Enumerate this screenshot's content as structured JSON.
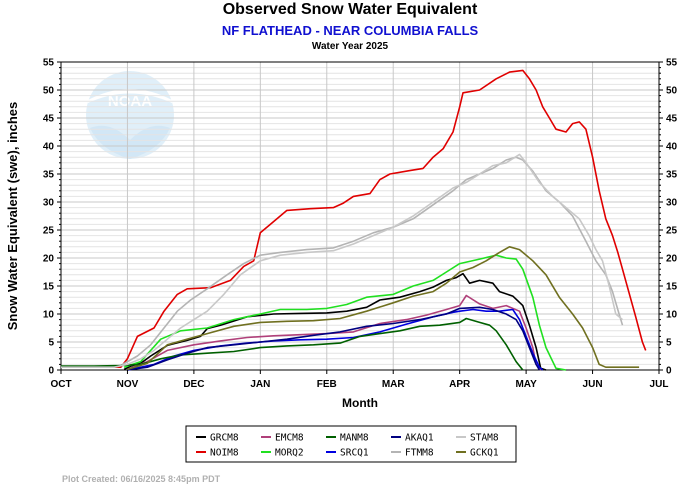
{
  "title": "Observed Snow Water Equivalent",
  "subtitle": "NF FLATHEAD - NEAR COLUMBIA FALLS",
  "water_year": "Water Year 2025",
  "credit": "Plot Created: 06/16/2025 8:45pm PDT",
  "logo_text": "NOAA",
  "chart_data": {
    "type": "line",
    "xlabel": "Month",
    "ylabel": "Snow Water Equivalent (swe),  inches",
    "ylim": [
      0,
      55
    ],
    "yticks": [
      0,
      5,
      10,
      15,
      20,
      25,
      30,
      35,
      40,
      45,
      50,
      55
    ],
    "xlim": [
      0,
      9
    ],
    "xticks": [
      "OCT",
      "NOV",
      "DEC",
      "JAN",
      "FEB",
      "MAR",
      "APR",
      "MAY",
      "JUN",
      "JUL"
    ],
    "grid": true,
    "legend_position": "bottom",
    "series": [
      {
        "name": "GRCM8",
        "color": "#000000",
        "points": [
          [
            0.95,
            0.1
          ],
          [
            1.05,
            0.7
          ],
          [
            1.2,
            1.2
          ],
          [
            1.35,
            2.5
          ],
          [
            1.6,
            4.4
          ],
          [
            1.9,
            5.3
          ],
          [
            2.1,
            6.0
          ],
          [
            2.2,
            7.4
          ],
          [
            2.4,
            8.0
          ],
          [
            2.8,
            9.5
          ],
          [
            3.2,
            10.0
          ],
          [
            3.6,
            10.1
          ],
          [
            4.0,
            10.2
          ],
          [
            4.3,
            10.5
          ],
          [
            4.6,
            11.2
          ],
          [
            4.8,
            12.5
          ],
          [
            5.1,
            13.0
          ],
          [
            5.4,
            14.0
          ],
          [
            5.6,
            14.8
          ],
          [
            5.8,
            16.0
          ],
          [
            5.95,
            16.5
          ],
          [
            6.05,
            17.2
          ],
          [
            6.15,
            15.5
          ],
          [
            6.3,
            16.0
          ],
          [
            6.5,
            15.5
          ],
          [
            6.6,
            14.0
          ],
          [
            6.8,
            13.2
          ],
          [
            6.95,
            11.5
          ],
          [
            7.05,
            8.0
          ],
          [
            7.15,
            4.0
          ],
          [
            7.22,
            0.3
          ],
          [
            7.3,
            0.0
          ]
        ]
      },
      {
        "name": "NOIM8",
        "color": "#e00000",
        "points": [
          [
            0.0,
            0.5
          ],
          [
            0.9,
            0.5
          ],
          [
            1.0,
            2.0
          ],
          [
            1.15,
            6.0
          ],
          [
            1.4,
            7.5
          ],
          [
            1.55,
            10.5
          ],
          [
            1.75,
            13.5
          ],
          [
            1.9,
            14.5
          ],
          [
            2.25,
            14.7
          ],
          [
            2.55,
            16.0
          ],
          [
            2.75,
            18.5
          ],
          [
            2.9,
            19.5
          ],
          [
            3.0,
            24.5
          ],
          [
            3.15,
            26.0
          ],
          [
            3.4,
            28.5
          ],
          [
            3.75,
            28.8
          ],
          [
            4.1,
            29.0
          ],
          [
            4.25,
            29.8
          ],
          [
            4.4,
            31.0
          ],
          [
            4.65,
            31.5
          ],
          [
            4.8,
            34.0
          ],
          [
            4.95,
            35.0
          ],
          [
            5.25,
            35.6
          ],
          [
            5.45,
            36.0
          ],
          [
            5.6,
            38.0
          ],
          [
            5.75,
            39.5
          ],
          [
            5.9,
            42.5
          ],
          [
            6.0,
            47.0
          ],
          [
            6.05,
            49.5
          ],
          [
            6.3,
            50.0
          ],
          [
            6.55,
            52.0
          ],
          [
            6.75,
            53.2
          ],
          [
            6.95,
            53.5
          ],
          [
            7.05,
            52.0
          ],
          [
            7.15,
            50.0
          ],
          [
            7.25,
            47.0
          ],
          [
            7.35,
            45.0
          ],
          [
            7.45,
            43.0
          ],
          [
            7.6,
            42.5
          ],
          [
            7.7,
            44.0
          ],
          [
            7.8,
            44.3
          ],
          [
            7.9,
            43.0
          ],
          [
            8.0,
            38.0
          ],
          [
            8.1,
            32.0
          ],
          [
            8.2,
            27.0
          ],
          [
            8.3,
            24.0
          ],
          [
            8.38,
            21.0
          ],
          [
            8.45,
            18.0
          ],
          [
            8.65,
            9.5
          ],
          [
            8.75,
            5.0
          ],
          [
            8.8,
            3.5
          ]
        ]
      },
      {
        "name": "EMCM8",
        "color": "#b0407a",
        "points": [
          [
            1.0,
            0.1
          ],
          [
            1.3,
            1.5
          ],
          [
            1.6,
            3.5
          ],
          [
            2.0,
            4.5
          ],
          [
            2.4,
            5.2
          ],
          [
            2.8,
            5.8
          ],
          [
            3.2,
            6.1
          ],
          [
            3.6,
            6.3
          ],
          [
            4.0,
            6.5
          ],
          [
            4.4,
            6.8
          ],
          [
            4.8,
            8.3
          ],
          [
            5.2,
            9.0
          ],
          [
            5.5,
            9.8
          ],
          [
            5.8,
            10.8
          ],
          [
            6.0,
            11.5
          ],
          [
            6.1,
            13.3
          ],
          [
            6.3,
            11.8
          ],
          [
            6.5,
            11.0
          ],
          [
            6.7,
            11.5
          ],
          [
            6.9,
            10.5
          ],
          [
            7.0,
            7.5
          ],
          [
            7.1,
            4.0
          ],
          [
            7.15,
            1.0
          ],
          [
            7.22,
            0.0
          ]
        ]
      },
      {
        "name": "MORQ2",
        "color": "#20e020",
        "points": [
          [
            0.95,
            0.5
          ],
          [
            1.2,
            1.5
          ],
          [
            1.5,
            5.5
          ],
          [
            1.8,
            7.0
          ],
          [
            2.2,
            7.5
          ],
          [
            2.6,
            9.0
          ],
          [
            3.0,
            10.0
          ],
          [
            3.3,
            10.8
          ],
          [
            3.7,
            10.8
          ],
          [
            4.0,
            11.0
          ],
          [
            4.3,
            11.7
          ],
          [
            4.6,
            13.0
          ],
          [
            5.0,
            13.5
          ],
          [
            5.3,
            15.0
          ],
          [
            5.6,
            16.0
          ],
          [
            5.8,
            17.5
          ],
          [
            6.0,
            19.0
          ],
          [
            6.3,
            19.8
          ],
          [
            6.55,
            20.5
          ],
          [
            6.7,
            20.0
          ],
          [
            6.85,
            19.8
          ],
          [
            6.95,
            18.0
          ],
          [
            7.1,
            13.0
          ],
          [
            7.2,
            8.0
          ],
          [
            7.3,
            4.0
          ],
          [
            7.45,
            0.3
          ],
          [
            7.6,
            0.0
          ]
        ]
      },
      {
        "name": "SRCQ1",
        "color": "#0000e0",
        "points": [
          [
            1.0,
            0.0
          ],
          [
            1.4,
            1.0
          ],
          [
            1.7,
            2.5
          ],
          [
            2.0,
            3.5
          ],
          [
            2.4,
            4.3
          ],
          [
            2.8,
            4.8
          ],
          [
            3.2,
            5.2
          ],
          [
            3.6,
            5.4
          ],
          [
            4.0,
            5.5
          ],
          [
            4.4,
            5.8
          ],
          [
            4.8,
            6.8
          ],
          [
            5.2,
            8.2
          ],
          [
            5.6,
            9.5
          ],
          [
            5.9,
            10.3
          ],
          [
            6.0,
            10.5
          ],
          [
            6.2,
            10.8
          ],
          [
            6.4,
            10.5
          ],
          [
            6.6,
            10.5
          ],
          [
            6.8,
            10.8
          ],
          [
            6.9,
            9.0
          ],
          [
            7.0,
            6.0
          ],
          [
            7.1,
            3.0
          ],
          [
            7.2,
            0.5
          ],
          [
            7.25,
            0.0
          ]
        ]
      },
      {
        "name": "FTMM8",
        "color": "#b4b4b4",
        "points": [
          [
            0.0,
            0.6
          ],
          [
            0.7,
            0.6
          ],
          [
            0.9,
            0.8
          ],
          [
            1.15,
            2.5
          ],
          [
            1.35,
            4.5
          ],
          [
            1.55,
            7.5
          ],
          [
            1.75,
            10.5
          ],
          [
            1.95,
            12.5
          ],
          [
            2.2,
            14.5
          ],
          [
            2.5,
            17.0
          ],
          [
            2.75,
            19.0
          ],
          [
            3.0,
            20.5
          ],
          [
            3.3,
            21.0
          ],
          [
            3.7,
            21.5
          ],
          [
            4.1,
            21.8
          ],
          [
            4.4,
            23.0
          ],
          [
            4.7,
            24.5
          ],
          [
            5.0,
            25.5
          ],
          [
            5.3,
            27.0
          ],
          [
            5.6,
            29.5
          ],
          [
            5.9,
            32.0
          ],
          [
            6.1,
            34.0
          ],
          [
            6.3,
            35.0
          ],
          [
            6.5,
            36.0
          ],
          [
            6.7,
            37.5
          ],
          [
            6.85,
            38.0
          ],
          [
            6.95,
            37.5
          ],
          [
            7.1,
            35.5
          ],
          [
            7.3,
            32.0
          ],
          [
            7.5,
            30.0
          ],
          [
            7.7,
            27.5
          ],
          [
            7.9,
            23.0
          ],
          [
            8.05,
            19.5
          ],
          [
            8.2,
            17.0
          ],
          [
            8.3,
            14.0
          ],
          [
            8.4,
            10.0
          ],
          [
            8.45,
            8.0
          ]
        ]
      },
      {
        "name": "MANM8",
        "color": "#006000",
        "points": [
          [
            0.0,
            0.7
          ],
          [
            0.5,
            0.7
          ],
          [
            0.9,
            0.8
          ],
          [
            1.2,
            1.0
          ],
          [
            1.5,
            2.0
          ],
          [
            1.8,
            2.7
          ],
          [
            2.2,
            3.0
          ],
          [
            2.6,
            3.3
          ],
          [
            3.0,
            4.0
          ],
          [
            3.4,
            4.3
          ],
          [
            3.8,
            4.5
          ],
          [
            4.2,
            4.8
          ],
          [
            4.5,
            6.0
          ],
          [
            4.8,
            6.5
          ],
          [
            5.1,
            7.0
          ],
          [
            5.4,
            7.8
          ],
          [
            5.7,
            8.0
          ],
          [
            6.0,
            8.5
          ],
          [
            6.1,
            9.2
          ],
          [
            6.3,
            8.5
          ],
          [
            6.45,
            8.0
          ],
          [
            6.55,
            7.0
          ],
          [
            6.7,
            4.5
          ],
          [
            6.85,
            1.5
          ],
          [
            6.95,
            0.0
          ]
        ]
      },
      {
        "name": "STAM8",
        "color": "#c8c8c8",
        "points": [
          [
            0.0,
            0.5
          ],
          [
            0.8,
            0.5
          ],
          [
            1.0,
            1.0
          ],
          [
            1.2,
            2.0
          ],
          [
            1.4,
            3.5
          ],
          [
            1.6,
            5.5
          ],
          [
            1.8,
            7.5
          ],
          [
            2.0,
            9.0
          ],
          [
            2.2,
            10.5
          ],
          [
            2.45,
            13.5
          ],
          [
            2.7,
            17.0
          ],
          [
            3.0,
            19.5
          ],
          [
            3.3,
            20.5
          ],
          [
            3.7,
            21.0
          ],
          [
            4.1,
            21.3
          ],
          [
            4.4,
            22.5
          ],
          [
            4.7,
            24.0
          ],
          [
            5.0,
            25.5
          ],
          [
            5.3,
            27.5
          ],
          [
            5.6,
            30.0
          ],
          [
            5.9,
            32.5
          ],
          [
            6.1,
            33.5
          ],
          [
            6.3,
            35.0
          ],
          [
            6.5,
            36.5
          ],
          [
            6.7,
            37.0
          ],
          [
            6.9,
            38.5
          ],
          [
            7.0,
            37.0
          ],
          [
            7.2,
            33.5
          ],
          [
            7.4,
            31.0
          ],
          [
            7.6,
            29.0
          ],
          [
            7.8,
            27.0
          ],
          [
            7.95,
            24.0
          ],
          [
            8.05,
            21.5
          ],
          [
            8.15,
            19.5
          ],
          [
            8.25,
            15.0
          ],
          [
            8.35,
            10.0
          ],
          [
            8.45,
            9.0
          ]
        ]
      },
      {
        "name": "AKAQ1",
        "color": "#000080",
        "points": [
          [
            1.0,
            0.0
          ],
          [
            1.3,
            0.5
          ],
          [
            1.6,
            1.8
          ],
          [
            1.9,
            3.0
          ],
          [
            2.2,
            4.0
          ],
          [
            2.6,
            4.5
          ],
          [
            3.0,
            5.0
          ],
          [
            3.4,
            5.5
          ],
          [
            3.8,
            6.2
          ],
          [
            4.2,
            6.8
          ],
          [
            4.6,
            7.8
          ],
          [
            5.0,
            8.3
          ],
          [
            5.4,
            9.0
          ],
          [
            5.8,
            10.0
          ],
          [
            6.0,
            11.0
          ],
          [
            6.3,
            11.2
          ],
          [
            6.5,
            10.8
          ],
          [
            6.7,
            10.0
          ],
          [
            6.85,
            9.0
          ],
          [
            6.95,
            7.0
          ],
          [
            7.05,
            4.0
          ],
          [
            7.15,
            1.0
          ],
          [
            7.2,
            0.0
          ]
        ]
      },
      {
        "name": "GCKQ1",
        "color": "#707020",
        "points": [
          [
            1.0,
            0.1
          ],
          [
            1.3,
            1.2
          ],
          [
            1.6,
            4.5
          ],
          [
            1.9,
            5.5
          ],
          [
            2.2,
            6.5
          ],
          [
            2.6,
            7.8
          ],
          [
            3.0,
            8.5
          ],
          [
            3.4,
            8.7
          ],
          [
            3.8,
            8.8
          ],
          [
            4.2,
            9.2
          ],
          [
            4.6,
            10.5
          ],
          [
            5.0,
            12.0
          ],
          [
            5.3,
            13.2
          ],
          [
            5.6,
            14.0
          ],
          [
            5.8,
            15.5
          ],
          [
            6.0,
            17.5
          ],
          [
            6.2,
            18.3
          ],
          [
            6.4,
            19.5
          ],
          [
            6.6,
            21.0
          ],
          [
            6.75,
            22.0
          ],
          [
            6.9,
            21.5
          ],
          [
            7.1,
            19.5
          ],
          [
            7.3,
            17.0
          ],
          [
            7.5,
            13.0
          ],
          [
            7.7,
            10.0
          ],
          [
            7.85,
            7.5
          ],
          [
            8.0,
            4.0
          ],
          [
            8.1,
            1.0
          ],
          [
            8.2,
            0.5
          ],
          [
            8.7,
            0.5
          ]
        ]
      }
    ]
  }
}
